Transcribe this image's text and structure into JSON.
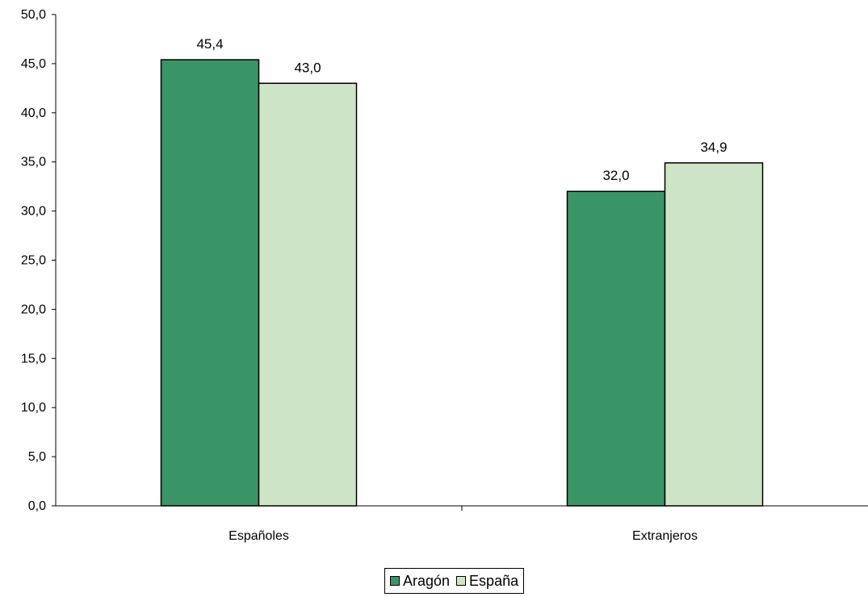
{
  "chart_data": {
    "type": "bar",
    "categories": [
      "Españoles",
      "Extranjeros"
    ],
    "series": [
      {
        "name": "Aragón",
        "values": [
          45.4,
          32.0
        ],
        "color": "#3a9566",
        "labels": [
          "45,4",
          "32,0"
        ]
      },
      {
        "name": "España",
        "values": [
          43.0,
          34.9
        ],
        "color": "#cde5c6",
        "labels": [
          "43,0",
          "34,9"
        ]
      }
    ],
    "ylim": [
      0,
      50
    ],
    "yticks": [
      0,
      5,
      10,
      15,
      20,
      25,
      30,
      35,
      40,
      45,
      50
    ],
    "ytick_labels": [
      "0,0",
      "5,0",
      "10,0",
      "15,0",
      "20,0",
      "25,0",
      "30,0",
      "35,0",
      "40,0",
      "45,0",
      "50,0"
    ],
    "grid": false,
    "legend_position": "bottom-center"
  }
}
